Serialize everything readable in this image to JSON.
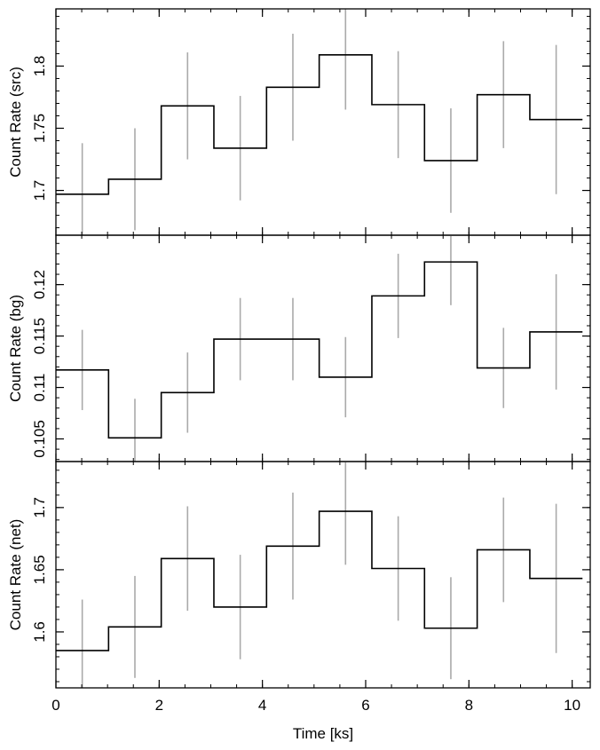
{
  "chart_data": [
    {
      "type": "line",
      "ylabel": "Count Rate (src)",
      "xlabel": "",
      "ylim": [
        1.664,
        1.846
      ],
      "yticks": [
        1.7,
        1.75,
        1.8
      ],
      "ytick_labels": [
        "1.7",
        "1.75",
        "1.8"
      ],
      "bins": [
        {
          "x0": 0.0,
          "x1": 1.02,
          "y": 1.697,
          "err": 0.041
        },
        {
          "x0": 1.02,
          "x1": 2.04,
          "y": 1.709,
          "err": 0.041
        },
        {
          "x0": 2.04,
          "x1": 3.06,
          "y": 1.768,
          "err": 0.043
        },
        {
          "x0": 3.06,
          "x1": 4.08,
          "y": 1.734,
          "err": 0.042
        },
        {
          "x0": 4.08,
          "x1": 5.1,
          "y": 1.783,
          "err": 0.043
        },
        {
          "x0": 5.1,
          "x1": 6.12,
          "y": 1.809,
          "err": 0.044
        },
        {
          "x0": 6.12,
          "x1": 7.14,
          "y": 1.769,
          "err": 0.043
        },
        {
          "x0": 7.14,
          "x1": 8.16,
          "y": 1.724,
          "err": 0.042
        },
        {
          "x0": 8.16,
          "x1": 9.18,
          "y": 1.777,
          "err": 0.043
        },
        {
          "x0": 9.18,
          "x1": 10.2,
          "y": 1.757,
          "err": 0.06
        }
      ]
    },
    {
      "type": "line",
      "ylabel": "Count Rate (bg)",
      "xlabel": "",
      "ylim": [
        0.1028,
        0.1248
      ],
      "yticks": [
        0.105,
        0.11,
        0.115,
        0.12
      ],
      "ytick_labels": [
        "0.105",
        "0.11",
        "0.115",
        "0.12"
      ],
      "bins": [
        {
          "x0": 0.0,
          "x1": 1.02,
          "y": 0.1117,
          "err": 0.0039
        },
        {
          "x0": 1.02,
          "x1": 2.04,
          "y": 0.1051,
          "err": 0.0038
        },
        {
          "x0": 2.04,
          "x1": 3.06,
          "y": 0.1095,
          "err": 0.0039
        },
        {
          "x0": 3.06,
          "x1": 4.08,
          "y": 0.1147,
          "err": 0.004
        },
        {
          "x0": 4.08,
          "x1": 5.1,
          "y": 0.1147,
          "err": 0.004
        },
        {
          "x0": 5.1,
          "x1": 6.12,
          "y": 0.111,
          "err": 0.0039
        },
        {
          "x0": 6.12,
          "x1": 7.14,
          "y": 0.1189,
          "err": 0.0041
        },
        {
          "x0": 7.14,
          "x1": 8.16,
          "y": 0.1222,
          "err": 0.0042
        },
        {
          "x0": 8.16,
          "x1": 9.18,
          "y": 0.1119,
          "err": 0.0039
        },
        {
          "x0": 9.18,
          "x1": 10.2,
          "y": 0.1154,
          "err": 0.0056
        }
      ]
    },
    {
      "type": "line",
      "ylabel": "Count Rate (net)",
      "xlabel": "Time [ks]",
      "ylim": [
        1.555,
        1.737
      ],
      "yticks": [
        1.6,
        1.65,
        1.7
      ],
      "ytick_labels": [
        "1.6",
        "1.65",
        "1.7"
      ],
      "xlim": [
        0,
        10.35
      ],
      "xticks": [
        0,
        2,
        4,
        6,
        8,
        10
      ],
      "xtick_labels": [
        "0",
        "2",
        "4",
        "6",
        "8",
        "10"
      ],
      "bins": [
        {
          "x0": 0.0,
          "x1": 1.02,
          "y": 1.585,
          "err": 0.041
        },
        {
          "x0": 1.02,
          "x1": 2.04,
          "y": 1.604,
          "err": 0.041
        },
        {
          "x0": 2.04,
          "x1": 3.06,
          "y": 1.659,
          "err": 0.042
        },
        {
          "x0": 3.06,
          "x1": 4.08,
          "y": 1.62,
          "err": 0.042
        },
        {
          "x0": 4.08,
          "x1": 5.1,
          "y": 1.669,
          "err": 0.043
        },
        {
          "x0": 5.1,
          "x1": 6.12,
          "y": 1.697,
          "err": 0.043
        },
        {
          "x0": 6.12,
          "x1": 7.14,
          "y": 1.651,
          "err": 0.042
        },
        {
          "x0": 7.14,
          "x1": 8.16,
          "y": 1.603,
          "err": 0.041
        },
        {
          "x0": 8.16,
          "x1": 9.18,
          "y": 1.666,
          "err": 0.042
        },
        {
          "x0": 9.18,
          "x1": 10.2,
          "y": 1.643,
          "err": 0.06
        }
      ]
    }
  ],
  "colors": {
    "histogram": "#000000",
    "errorbar": "#aaaaaa",
    "frame": "#000000"
  }
}
